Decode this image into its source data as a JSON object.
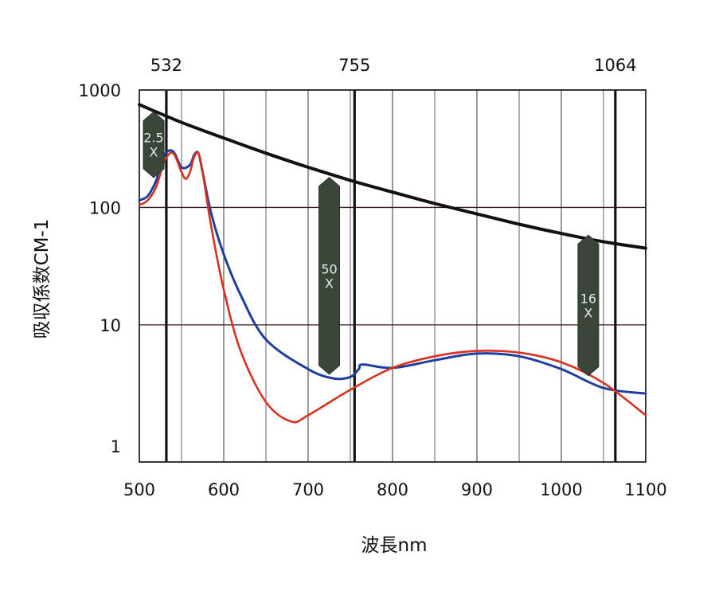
{
  "chart_data": {
    "type": "line",
    "xlabel": "波長nm",
    "ylabel": "吸収係数CM-1",
    "x_scale": "linear",
    "y_scale": "log",
    "xlim": [
      500,
      1100
    ],
    "ylim": [
      0.68,
      1000
    ],
    "x_ticks": [
      500,
      600,
      700,
      800,
      900,
      1000,
      1100
    ],
    "x_tick_labels": [
      "500",
      "600",
      "700",
      "800",
      "900",
      "1000",
      "1100"
    ],
    "y_ticks": [
      1,
      10,
      100,
      1000
    ],
    "y_tick_labels": [
      "1",
      "10",
      "100",
      "1000"
    ],
    "top_markers": [
      {
        "x": 532,
        "label": "532"
      },
      {
        "x": 755,
        "label": "755"
      },
      {
        "x": 1064,
        "label": "1064"
      }
    ],
    "grid": true,
    "series": [
      {
        "color": "#111111",
        "x": [
          500,
          550,
          600,
          650,
          700,
          750,
          800,
          850,
          900,
          950,
          1000,
          1050,
          1100
        ],
        "values": [
          750,
          530,
          390,
          290,
          220,
          170,
          135,
          108,
          88,
          72,
          60,
          51,
          45
        ]
      },
      {
        "color": "#1f3fa0",
        "x": [
          500,
          510,
          520,
          530,
          540,
          550,
          560,
          565,
          570,
          575,
          585,
          600,
          620,
          650,
          700,
          730,
          750,
          760,
          765,
          800,
          850,
          900,
          950,
          1000,
          1050,
          1100
        ],
        "values": [
          115,
          125,
          170,
          280,
          300,
          220,
          230,
          280,
          290,
          200,
          90,
          40,
          18,
          7.5,
          4.2,
          3.5,
          3.6,
          4.2,
          4.6,
          4.3,
          5.0,
          5.7,
          5.4,
          4.2,
          2.9,
          2.6
        ]
      },
      {
        "color": "#d93020",
        "x": [
          500,
          510,
          520,
          530,
          540,
          550,
          555,
          560,
          565,
          570,
          575,
          585,
          600,
          620,
          650,
          680,
          700,
          750,
          800,
          850,
          900,
          950,
          1000,
          1050,
          1100
        ],
        "values": [
          105,
          115,
          150,
          250,
          290,
          200,
          175,
          200,
          270,
          290,
          200,
          70,
          20,
          6,
          2.2,
          1.5,
          1.7,
          2.8,
          4.3,
          5.4,
          6.0,
          5.8,
          4.8,
          3.2,
          1.7
        ]
      }
    ],
    "annotations": [
      {
        "x": 517,
        "y_top": 650,
        "y_bottom": 180,
        "label_top": "2.5",
        "label_bottom": "X"
      },
      {
        "x": 725,
        "y_top": 180,
        "y_bottom": 3.8,
        "label_top": "50",
        "label_bottom": "X"
      },
      {
        "x": 1032,
        "y_top": 58,
        "y_bottom": 3.7,
        "label_top": "16",
        "label_bottom": "X"
      }
    ]
  }
}
